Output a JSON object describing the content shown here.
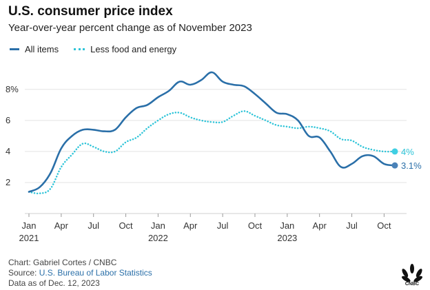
{
  "header": {
    "title": "U.S. consumer price index",
    "subtitle": "Year-over-year percent change as of November 2023"
  },
  "legend": {
    "items": [
      {
        "label": "All items",
        "style": "solid",
        "color": "#2a6fa8"
      },
      {
        "label": "Less food and energy",
        "style": "dotted",
        "color": "#2ec4d8"
      }
    ]
  },
  "chart_data": {
    "type": "line",
    "x": [
      "2021-01",
      "2021-02",
      "2021-03",
      "2021-04",
      "2021-05",
      "2021-06",
      "2021-07",
      "2021-08",
      "2021-09",
      "2021-10",
      "2021-11",
      "2021-12",
      "2022-01",
      "2022-02",
      "2022-03",
      "2022-04",
      "2022-05",
      "2022-06",
      "2022-07",
      "2022-08",
      "2022-09",
      "2022-10",
      "2022-11",
      "2022-12",
      "2023-01",
      "2023-02",
      "2023-03",
      "2023-04",
      "2023-05",
      "2023-06",
      "2023-07",
      "2023-08",
      "2023-09",
      "2023-10",
      "2023-11"
    ],
    "series": [
      {
        "name": "All items",
        "color": "#2a6fa8",
        "style": "solid",
        "values": [
          1.4,
          1.7,
          2.6,
          4.2,
          5.0,
          5.4,
          5.4,
          5.3,
          5.4,
          6.2,
          6.8,
          7.0,
          7.5,
          7.9,
          8.5,
          8.3,
          8.6,
          9.1,
          8.5,
          8.3,
          8.2,
          7.7,
          7.1,
          6.5,
          6.4,
          6.0,
          5.0,
          4.9,
          4.0,
          3.0,
          3.2,
          3.7,
          3.7,
          3.2,
          3.1
        ]
      },
      {
        "name": "Less food and energy",
        "color": "#2ec4d8",
        "style": "dotted",
        "values": [
          1.4,
          1.3,
          1.6,
          3.0,
          3.8,
          4.5,
          4.3,
          4.0,
          4.0,
          4.6,
          4.9,
          5.5,
          6.0,
          6.4,
          6.5,
          6.2,
          6.0,
          5.9,
          5.9,
          6.3,
          6.6,
          6.3,
          6.0,
          5.7,
          5.6,
          5.5,
          5.6,
          5.5,
          5.3,
          4.8,
          4.7,
          4.3,
          4.1,
          4.0,
          4.0
        ]
      }
    ],
    "end_labels": [
      "3.1%",
      "4%"
    ],
    "yticks": [
      {
        "value": 2,
        "label": "2"
      },
      {
        "value": 4,
        "label": "4"
      },
      {
        "value": 6,
        "label": "6"
      },
      {
        "value": 8,
        "label": "8%"
      }
    ],
    "xticks": [
      {
        "month": "2021-01",
        "label": "Jan",
        "year": "2021"
      },
      {
        "month": "2021-04",
        "label": "Apr",
        "year": ""
      },
      {
        "month": "2021-07",
        "label": "Jul",
        "year": ""
      },
      {
        "month": "2021-10",
        "label": "Oct",
        "year": ""
      },
      {
        "month": "2022-01",
        "label": "Jan",
        "year": "2022"
      },
      {
        "month": "2022-04",
        "label": "Apr",
        "year": ""
      },
      {
        "month": "2022-07",
        "label": "Jul",
        "year": ""
      },
      {
        "month": "2022-10",
        "label": "Oct",
        "year": ""
      },
      {
        "month": "2023-01",
        "label": "Jan",
        "year": "2023"
      },
      {
        "month": "2023-04",
        "label": "Apr",
        "year": ""
      },
      {
        "month": "2023-07",
        "label": "Jul",
        "year": ""
      },
      {
        "month": "2023-10",
        "label": "Oct",
        "year": ""
      }
    ],
    "ylim": [
      0,
      9.5
    ],
    "grid": true
  },
  "footer": {
    "credit": "Chart: Gabriel Cortes / CNBC",
    "source_prefix": "Source: ",
    "source_link": "U.S. Bureau of Labor Statistics",
    "date_note": "Data as of Dec. 12, 2023"
  },
  "logo": {
    "icon": "cnbc-peacock-icon",
    "text": "CNBC"
  }
}
